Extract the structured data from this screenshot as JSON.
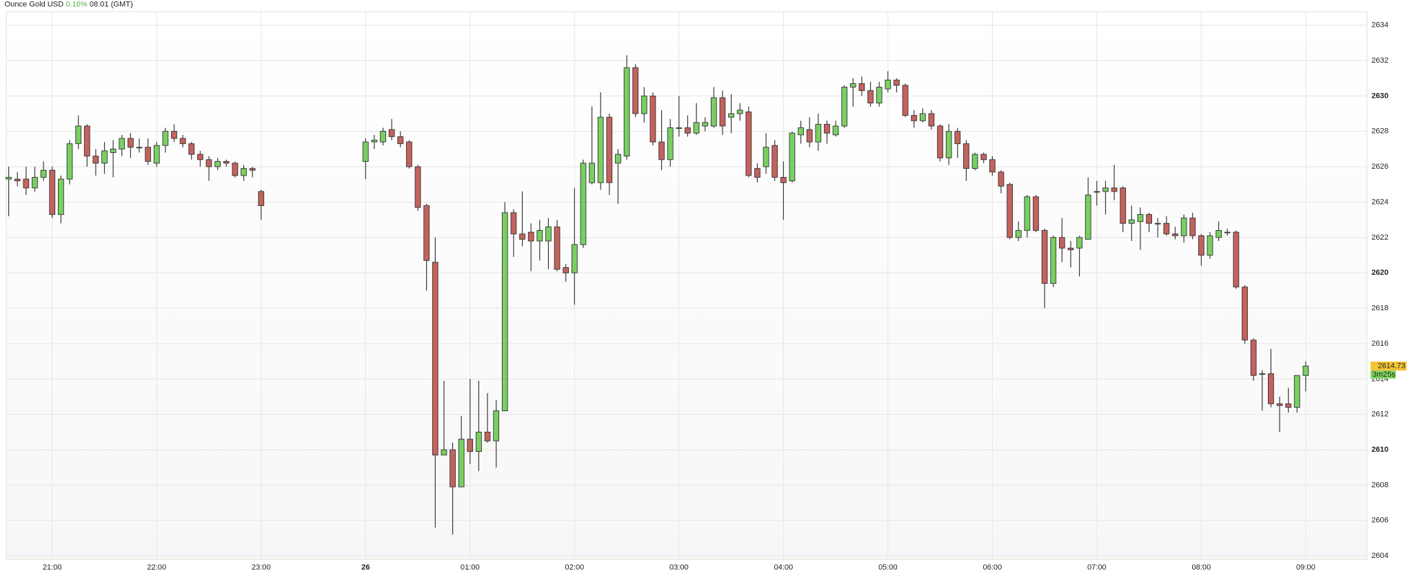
{
  "chart_data": {
    "type": "candlestick",
    "title": "Ounce Gold USD",
    "change": "0.16%",
    "time": "08:01 (GMT)",
    "x": [
      "20:35",
      "20:40",
      "20:45",
      "20:50",
      "20:55",
      "21:00",
      "21:05",
      "21:10",
      "21:15",
      "21:20",
      "21:25",
      "21:30",
      "21:35",
      "21:40",
      "21:45",
      "21:50",
      "21:55",
      "22:00",
      "22:05",
      "22:10",
      "22:15",
      "22:20",
      "22:25",
      "22:30",
      "22:35",
      "22:40",
      "22:45",
      "22:50",
      "22:55",
      "23:00",
      "00:00",
      "00:05",
      "00:10",
      "00:15",
      "00:20",
      "00:25",
      "00:30",
      "00:35",
      "00:40",
      "00:45",
      "00:50",
      "00:55",
      "01:00",
      "01:05",
      "01:10",
      "01:15",
      "01:20",
      "01:25",
      "01:30",
      "01:35",
      "01:40",
      "01:45",
      "01:50",
      "01:55",
      "02:00",
      "02:05",
      "02:10",
      "02:15",
      "02:20",
      "02:25",
      "02:30",
      "02:35",
      "02:40",
      "02:45",
      "02:50",
      "02:55",
      "03:00",
      "03:05",
      "03:10",
      "03:15",
      "03:20",
      "03:25",
      "03:30",
      "03:35",
      "03:40",
      "03:45",
      "03:50",
      "03:55",
      "04:00",
      "04:05",
      "04:10",
      "04:15",
      "04:20",
      "04:25",
      "04:30",
      "04:35",
      "04:40",
      "04:45",
      "04:50",
      "04:55",
      "05:00",
      "05:05",
      "05:10",
      "05:15",
      "05:20",
      "05:25",
      "05:30",
      "05:35",
      "05:40",
      "05:45",
      "05:50",
      "05:55",
      "06:00",
      "06:05",
      "06:10",
      "06:15",
      "06:20",
      "06:25",
      "06:30",
      "06:35",
      "06:40",
      "06:45",
      "06:50",
      "06:55",
      "07:00",
      "07:05",
      "07:10",
      "07:15",
      "07:20",
      "07:25",
      "07:30",
      "07:35",
      "07:40",
      "07:45",
      "07:50",
      "07:55",
      "08:00",
      "08:05",
      "08:10",
      "08:15",
      "08:20",
      "08:25",
      "08:30",
      "08:35",
      "08:40",
      "08:45",
      "08:50",
      "08:55",
      "09:00"
    ],
    "open": [
      2625.3,
      2625.3,
      2625.3,
      2624.8,
      2625.4,
      2625.8,
      2623.3,
      2625.3,
      2627.3,
      2628.3,
      2626.6,
      2626.2,
      2626.8,
      2627.0,
      2627.6,
      2627.1,
      2627.1,
      2626.2,
      2627.2,
      2628.0,
      2627.6,
      2627.3,
      2626.7,
      2626.4,
      2626.0,
      2626.3,
      2626.2,
      2625.5,
      2625.9,
      2624.6,
      2626.3,
      2627.4,
      2627.4,
      2628.1,
      2627.7,
      2627.4,
      2626.0,
      2623.8,
      2620.6,
      2609.7,
      2610.0,
      2607.9,
      2610.6,
      2609.9,
      2611.0,
      2610.5,
      2612.2,
      2623.4,
      2622.2,
      2622.3,
      2621.8,
      2621.8,
      2622.6,
      2620.3,
      2620.0,
      2621.6,
      2625.1,
      2625.1,
      2628.8,
      2626.2,
      2626.6,
      2631.6,
      2629.0,
      2630.0,
      2627.4,
      2626.4,
      2628.2,
      2628.2,
      2627.9,
      2628.3,
      2628.3,
      2629.9,
      2628.8,
      2629.0,
      2629.1,
      2625.9,
      2626.0,
      2627.2,
      2625.4,
      2625.2,
      2627.8,
      2628.1,
      2627.4,
      2628.4,
      2627.8,
      2628.3,
      2630.5,
      2630.7,
      2630.3,
      2629.6,
      2630.4,
      2630.9,
      2630.6,
      2628.9,
      2628.6,
      2629.0,
      2628.3,
      2626.5,
      2628.0,
      2627.3,
      2625.9,
      2626.7,
      2626.4,
      2625.7,
      2625.0,
      2622.0,
      2622.4,
      2624.3,
      2622.4,
      2619.4,
      2622.0,
      2621.4,
      2621.4,
      2621.9,
      2624.6,
      2624.6,
      2624.8,
      2624.8,
      2622.8,
      2622.9,
      2623.3,
      2622.8,
      2622.8,
      2622.2,
      2622.1,
      2623.1,
      2622.1,
      2621.0,
      2622.0,
      2622.3,
      2622.3,
      2619.2,
      2616.2,
      2614.3,
      2614.3,
      2612.6,
      2612.6,
      2612.4,
      2614.2
    ],
    "high": [
      2626,
      2625.7,
      2626,
      2626,
      2626.3,
      2626,
      2625.5,
      2627.5,
      2628.9,
      2628.4,
      2627.0,
      2627.4,
      2627.5,
      2627.8,
      2627.9,
      2627.6,
      2627.6,
      2627.4,
      2628.2,
      2628.4,
      2627.8,
      2627.4,
      2626.9,
      2626.6,
      2626.5,
      2626.4,
      2626.3,
      2626.1,
      2626.0,
      2624.7,
      2627.6,
      2627.8,
      2628.2,
      2628.7,
      2628.0,
      2627.5,
      2626.1,
      2623.9,
      2622.0,
      2613.9,
      2610.4,
      2611.9,
      2614.0,
      2613.9,
      2613.2,
      2612.8,
      2624.0,
      2623.6,
      2624.6,
      2622.8,
      2623.0,
      2623.1,
      2623.0,
      2620.5,
      2624.8,
      2626.4,
      2629.4,
      2630.2,
      2629.0,
      2627.0,
      2632.3,
      2631.8,
      2630.5,
      2630.2,
      2629.2,
      2628.7,
      2630.0,
      2628.9,
      2629.6,
      2628.8,
      2630.5,
      2630.3,
      2630.1,
      2629.6,
      2629.4,
      2626.2,
      2627.9,
      2627.5,
      2626.3,
      2628.0,
      2628.6,
      2628.8,
      2629.0,
      2628.6,
      2628.6,
      2630.6,
      2631.0,
      2631.1,
      2630.8,
      2630.8,
      2631.4,
      2631.0,
      2630.7,
      2629.2,
      2629.3,
      2629.2,
      2628.4,
      2628.4,
      2628.2,
      2627.5,
      2626.8,
      2626.8,
      2626.6,
      2625.8,
      2625.1,
      2622.9,
      2624.4,
      2624.4,
      2622.5,
      2622.1,
      2623.1,
      2621.8,
      2622.1,
      2625.4,
      2625.2,
      2625.2,
      2626.1,
      2624.9,
      2623.8,
      2623.7,
      2623.4,
      2623.1,
      2623.2,
      2622.6,
      2623.3,
      2623.4,
      2622.2,
      2622.3,
      2622.9,
      2622.5,
      2622.4,
      2619.3,
      2616.3,
      2614.5,
      2615.7,
      2613.0,
      2613.5,
      2614.2,
      2615.0
    ],
    "low": [
      2623.2,
      2624.9,
      2624.4,
      2624.6,
      2625.2,
      2623.1,
      2622.8,
      2625.0,
      2627.0,
      2626.0,
      2625.5,
      2625.6,
      2625.4,
      2626.6,
      2626.5,
      2626.8,
      2626.1,
      2626.0,
      2626.8,
      2627.4,
      2627.1,
      2626.4,
      2626.0,
      2625.2,
      2625.8,
      2626.0,
      2625.4,
      2625.2,
      2625.4,
      2623.0,
      2625.3,
      2627.0,
      2627.2,
      2627.5,
      2627.1,
      2625.9,
      2623.5,
      2619.0,
      2605.6,
      2609.7,
      2605.2,
      2607.9,
      2609.2,
      2608.8,
      2610.4,
      2609.0,
      2612.2,
      2620.9,
      2621.5,
      2620.1,
      2620.7,
      2620.2,
      2620.1,
      2619.5,
      2618.2,
      2621.4,
      2625.0,
      2624.7,
      2624.4,
      2623.9,
      2626.4,
      2628.8,
      2628.5,
      2627.2,
      2625.8,
      2626.0,
      2627.7,
      2627.7,
      2627.8,
      2628.0,
      2628.2,
      2627.8,
      2627.9,
      2628.6,
      2625.4,
      2625.1,
      2625.6,
      2625.2,
      2623.0,
      2625.1,
      2627.3,
      2627.1,
      2626.9,
      2627.3,
      2627.7,
      2628.2,
      2629.4,
      2630.0,
      2629.4,
      2629.4,
      2630.2,
      2630.2,
      2628.8,
      2628.2,
      2628.5,
      2628.1,
      2626.3,
      2626.1,
      2626.5,
      2625.2,
      2625.8,
      2626.2,
      2625.5,
      2624.5,
      2621.9,
      2621.8,
      2622.0,
      2622.3,
      2618.0,
      2619.2,
      2620.6,
      2620.3,
      2619.8,
      2621.9,
      2623.8,
      2623.3,
      2624.1,
      2622.3,
      2621.8,
      2621.3,
      2622.3,
      2622.0,
      2622.1,
      2621.9,
      2621.7,
      2621.9,
      2620.4,
      2620.8,
      2621.8,
      2622.1,
      2619.1,
      2616.0,
      2613.9,
      2612.2,
      2612.4,
      2611.0,
      2612.1,
      2612.1,
      2613.3
    ],
    "close": [
      2625.4,
      2625.2,
      2624.8,
      2625.4,
      2625.8,
      2623.3,
      2625.3,
      2627.3,
      2628.3,
      2626.6,
      2626.2,
      2626.9,
      2627.0,
      2627.6,
      2627.1,
      2627.1,
      2626.3,
      2627.2,
      2628.0,
      2627.6,
      2627.3,
      2626.7,
      2626.4,
      2626.0,
      2626.3,
      2626.2,
      2625.5,
      2625.9,
      2625.8,
      2623.8,
      2627.4,
      2627.5,
      2628.0,
      2627.7,
      2627.3,
      2626.0,
      2623.7,
      2620.7,
      2609.7,
      2610.0,
      2607.9,
      2610.6,
      2609.9,
      2611.0,
      2610.5,
      2612.2,
      2623.4,
      2622.2,
      2621.9,
      2621.8,
      2622.4,
      2622.6,
      2620.2,
      2620.0,
      2621.6,
      2626.2,
      2626.2,
      2628.8,
      2625.1,
      2626.7,
      2631.6,
      2629.0,
      2630.0,
      2627.4,
      2626.4,
      2628.2,
      2628.2,
      2627.9,
      2628.5,
      2628.5,
      2629.9,
      2628.3,
      2629.0,
      2629.2,
      2625.5,
      2625.4,
      2627.1,
      2625.4,
      2625.1,
      2627.9,
      2628.2,
      2627.4,
      2628.4,
      2627.9,
      2628.3,
      2630.5,
      2630.7,
      2630.3,
      2629.6,
      2630.5,
      2630.9,
      2630.6,
      2628.9,
      2628.6,
      2629.0,
      2628.3,
      2626.5,
      2628.0,
      2627.3,
      2625.9,
      2626.7,
      2626.4,
      2625.7,
      2624.9,
      2622.0,
      2622.4,
      2624.3,
      2622.4,
      2619.4,
      2622.0,
      2621.4,
      2621.3,
      2622.0,
      2624.4,
      2624.6,
      2624.8,
      2624.6,
      2622.8,
      2623.0,
      2623.3,
      2622.8,
      2622.8,
      2622.2,
      2622.1,
      2623.1,
      2622.1,
      2621.0,
      2622.1,
      2622.4,
      2622.3,
      2619.2,
      2616.2,
      2614.2,
      2614.3,
      2612.6,
      2612.5,
      2612.4,
      2614.2,
      2614.73
    ],
    "up_color": "#79cf62",
    "down_color": "#c4625e",
    "last_price": 2614.73,
    "countdown": "3m25s",
    "xticks": [
      "21:00",
      "22:00",
      "23:00",
      {
        "value": "00:00",
        "label": "26"
      },
      "01:00",
      "02:00",
      "03:00",
      "04:00",
      "05:00",
      "06:00",
      "07:00",
      "08:00",
      "09:00"
    ],
    "ylim": [
      2604,
      2634
    ],
    "yticks": [
      2604,
      2606,
      2608,
      2610,
      2612,
      2614,
      2616,
      2618,
      2620,
      2622,
      2624,
      2626,
      2628,
      2630,
      2632,
      2634
    ],
    "grid": true
  }
}
